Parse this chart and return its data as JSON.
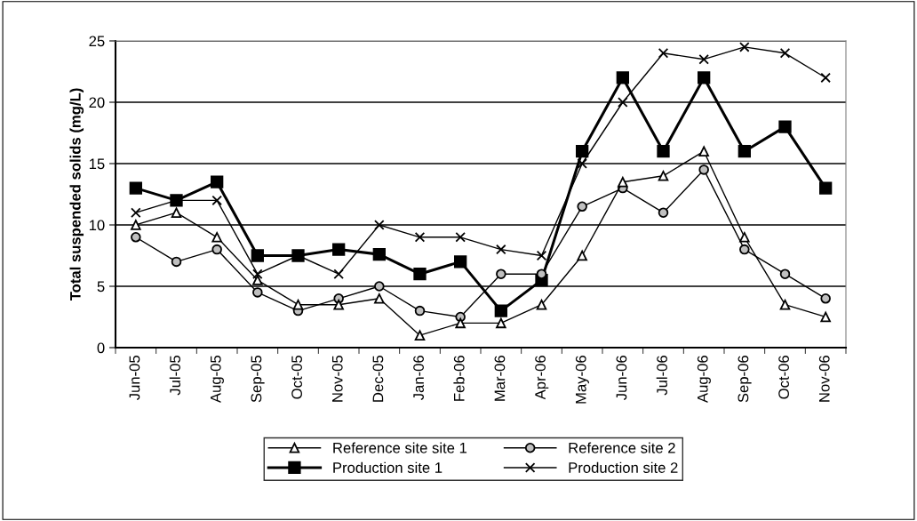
{
  "chart_data": {
    "type": "line",
    "ylabel": "Total suspended solids (mg/L)",
    "categories": [
      "Jun-05",
      "Jul-05",
      "Aug-05",
      "Sep-05",
      "Oct-05",
      "Nov-05",
      "Dec-05",
      "Jan-06",
      "Feb-06",
      "Mar-06",
      "Apr-06",
      "May-06",
      "Jun-06",
      "Jul-06",
      "Aug-06",
      "Sep-06",
      "Oct-06",
      "Nov-06"
    ],
    "series": [
      {
        "name": "Reference site site 1",
        "color": "#000000",
        "marker": "triangle",
        "values": [
          10,
          11,
          9,
          5.5,
          3.5,
          3.5,
          4,
          1,
          2,
          2,
          3.5,
          7.5,
          13.5,
          14,
          16,
          9,
          3.5,
          2.5
        ]
      },
      {
        "name": "Production site 1",
        "color": "#000000",
        "marker": "square",
        "values": [
          13,
          12,
          13.5,
          7.5,
          7.5,
          8,
          7.6,
          6,
          7,
          3,
          5.5,
          16,
          22,
          16,
          22,
          16,
          18,
          13
        ]
      },
      {
        "name": "Reference site 2",
        "color": "#000000",
        "marker": "circle",
        "values": [
          9,
          7,
          8,
          4.5,
          3,
          4,
          5,
          3,
          2.5,
          6,
          6,
          11.5,
          13,
          11,
          14.5,
          8,
          6,
          4
        ]
      },
      {
        "name": "Production site 2",
        "color": "#000000",
        "marker": "cross",
        "values": [
          11,
          12,
          12,
          6,
          7.5,
          6,
          10,
          9,
          9,
          8,
          7.5,
          15,
          20,
          24,
          23.5,
          24.5,
          24,
          22
        ]
      }
    ],
    "ylim": [
      0,
      25
    ],
    "yticks": [
      0,
      5,
      10,
      15,
      20,
      25
    ],
    "grid": "y",
    "legend": "bottom",
    "line_style": "solid"
  }
}
